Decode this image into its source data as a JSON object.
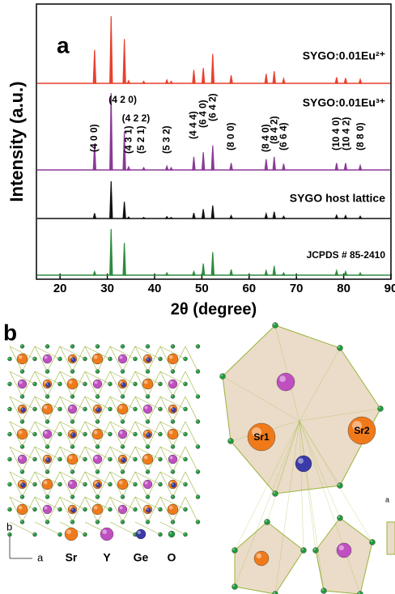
{
  "chart_data": {
    "type": "stick",
    "panel_label": "a",
    "y_label": "Intensity (a.u.)",
    "x_label": "2θ (degree)",
    "xlim": [
      15,
      90
    ],
    "xticks": [
      20,
      30,
      40,
      50,
      60,
      70,
      80,
      90
    ],
    "series": [
      {
        "name": "SYGO:0.01Eu²⁺",
        "color": "#e8412e",
        "x": [
          27.3,
          30.8,
          33.6,
          34.5,
          37.7,
          42.6,
          43.5,
          48.3,
          50.3,
          52.3,
          56.2,
          63.6,
          65.3,
          67.3,
          78.5,
          80.4,
          83.5
        ],
        "values": [
          50,
          100,
          66,
          4,
          3,
          5,
          3,
          20,
          23,
          44,
          12,
          14,
          18,
          7,
          9,
          8,
          6
        ]
      },
      {
        "name": "SYGO:0.01Eu³⁺",
        "color": "#8b3a96",
        "x": [
          27.3,
          30.8,
          33.6,
          34.5,
          37.7,
          42.6,
          43.5,
          48.3,
          50.3,
          52.3,
          56.2,
          63.6,
          65.3,
          67.3,
          78.5,
          80.4,
          83.5
        ],
        "values": [
          34,
          100,
          50,
          4,
          3,
          5,
          3,
          17,
          23,
          32,
          9,
          14,
          17,
          8,
          9,
          9,
          6
        ]
      },
      {
        "name": "SYGO host lattice",
        "color": "#111111",
        "x": [
          27.3,
          30.8,
          33.6,
          34.5,
          37.7,
          42.6,
          43.5,
          48.3,
          50.3,
          52.3,
          56.2,
          63.6,
          65.3,
          67.3,
          78.5,
          80.4,
          83.5
        ],
        "values": [
          14,
          100,
          45,
          4,
          3,
          5,
          3,
          15,
          25,
          35,
          8,
          13,
          18,
          6,
          9,
          8,
          6
        ]
      },
      {
        "name": "JCPDS # 85-2410",
        "color": "#2e8b3e",
        "x": [
          27.3,
          30.8,
          33.6,
          42.6,
          48.3,
          50.3,
          52.3,
          56.2,
          63.6,
          65.3,
          67.3,
          78.5,
          80.4,
          83.5
        ],
        "values": [
          8,
          100,
          70,
          5,
          8,
          25,
          50,
          12,
          10,
          20,
          5,
          10,
          8,
          5
        ]
      }
    ],
    "annotations": [
      {
        "text": "(4 0 0)",
        "x": 27.3
      },
      {
        "text": "(4 2 0)",
        "x": 30.8
      },
      {
        "text": "(4 2 2)",
        "x": 33.6
      },
      {
        "text": "(4 3 1)",
        "x": 34.6
      },
      {
        "text": "(5 2 1)",
        "x": 37.2
      },
      {
        "text": "(5 3 2)",
        "x": 42.6
      },
      {
        "text": "(4 4 4)",
        "x": 48.3
      },
      {
        "text": "(6 4 0)",
        "x": 50.3
      },
      {
        "text": "(6 4 2)",
        "x": 52.4
      },
      {
        "text": "(8 0 0)",
        "x": 56.2
      },
      {
        "text": "(8 4 0)",
        "x": 63.6
      },
      {
        "text": "(8 4 2)",
        "x": 65.4
      },
      {
        "text": "(6 6 4)",
        "x": 67.4
      },
      {
        "text": "(10 4 0)",
        "x": 78.5
      },
      {
        "text": "(10 4 2)",
        "x": 80.6
      },
      {
        "text": "(8 8 0)",
        "x": 83.6
      }
    ]
  },
  "panel_b": {
    "panel_label": "b",
    "legend": [
      {
        "name": "Sr",
        "color": "#f07a1a"
      },
      {
        "name": "Y",
        "color": "#c04fc0"
      },
      {
        "name": "Ge",
        "color": "#3a3aa8"
      },
      {
        "name": "O",
        "color": "#1f9a3a"
      }
    ],
    "axis_labels": [
      "b",
      "a"
    ],
    "site_labels": [
      "Sr1",
      "Sr2"
    ],
    "corner_label": "a"
  }
}
